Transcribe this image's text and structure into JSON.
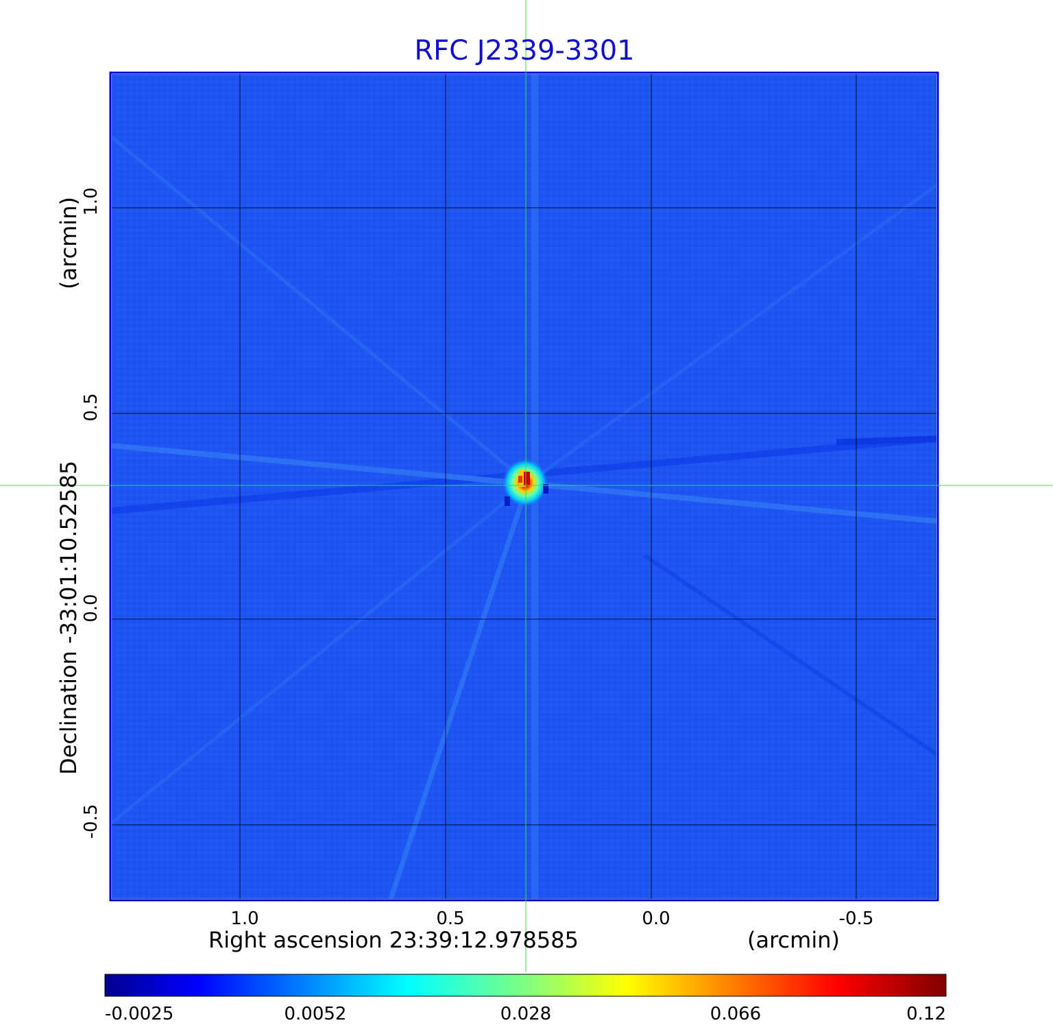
{
  "title": "RFC J2339-3301",
  "x_axis": {
    "label": "Right ascension  23:39:12.978585",
    "unit": "(arcmin)",
    "ticks": [
      "1.0",
      "0.5",
      "0.0",
      "-0.5"
    ]
  },
  "y_axis": {
    "label": "Declination  -33:01:10.52585",
    "unit": "(arcmin)",
    "ticks": [
      "1.0",
      "0.5",
      "0.0",
      "-0.5"
    ]
  },
  "colorbar": {
    "ticks": [
      "-0.0025",
      "0.0052",
      "0.028",
      "0.066",
      "0.12"
    ],
    "colormap": "jet"
  },
  "colors": {
    "title": "#1010cc",
    "background_map": "#1f55f2",
    "crosshair": "#33dd33",
    "frame": "#0000cc"
  }
}
